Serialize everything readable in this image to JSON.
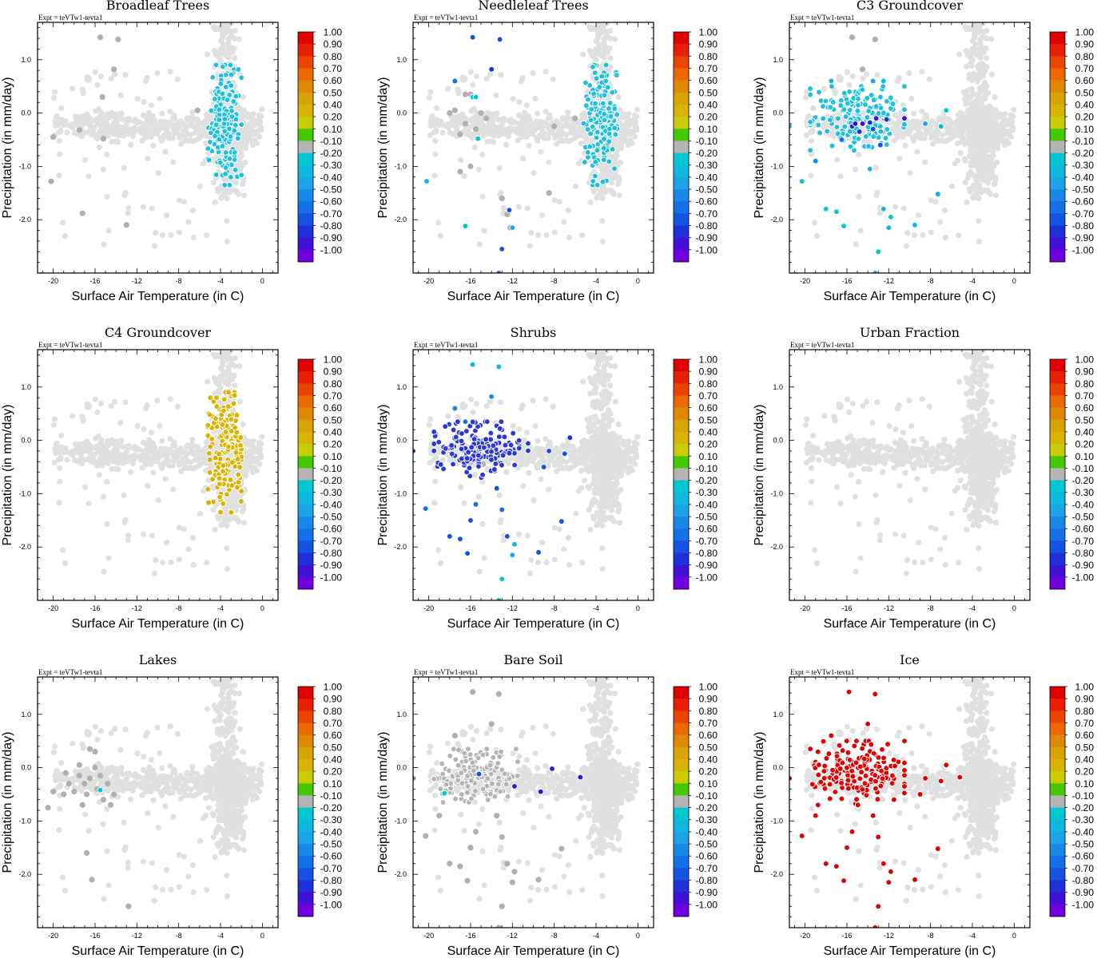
{
  "figure": {
    "expt_label": "Expt = teVTw1-tevta1",
    "xlabel": "Surface Air Temperature (in C)",
    "ylabel": "Precipitation (in mm/day)"
  },
  "chart_data": [
    {
      "type": "scatter",
      "title": "Broadleaf Trees",
      "xlim": [
        -21.5,
        1.5
      ],
      "ylim": [
        -3.0,
        1.7
      ],
      "xticks": [
        "-20",
        "-16",
        "-12",
        "-8",
        "-4",
        "0"
      ],
      "yticks": [
        "1.0",
        "0.0",
        "-1.0",
        "-2.0"
      ],
      "highlight_cluster": {
        "x_range": [
          -5.2,
          -2.0
        ],
        "y_range": [
          -1.35,
          0.9
        ],
        "color": "#1ec0dc",
        "approx_correlation": -0.25
      },
      "gray_points": [
        [
          -15.5,
          1.42
        ],
        [
          -13.8,
          1.38
        ],
        [
          -14.2,
          0.82
        ],
        [
          -15.3,
          0.3
        ],
        [
          -17.5,
          -0.32
        ],
        [
          -15.2,
          -0.48
        ],
        [
          -20.0,
          -0.45
        ],
        [
          -17.2,
          -1.88
        ],
        [
          -13,
          -2.1
        ],
        [
          -20.2,
          -1.28
        ],
        [
          -6.2,
          0.05
        ]
      ]
    },
    {
      "type": "scatter",
      "title": "Needleleaf Trees",
      "xlim": [
        -21.5,
        1.5
      ],
      "ylim": [
        -3.0,
        1.7
      ],
      "xticks": [
        "-20",
        "-16",
        "-12",
        "-8",
        "-4",
        "0"
      ],
      "yticks": [
        "1.0",
        "0.0",
        "-1.0",
        "-2.0"
      ],
      "highlight_cluster": {
        "x_range": [
          -5.2,
          -2.0
        ],
        "y_range": [
          -1.35,
          0.9
        ],
        "color": "#1ec0dc",
        "approx_correlation": -0.25
      },
      "gray_points": [
        [
          -17.5,
          0.05
        ],
        [
          -16.5,
          0.35
        ],
        [
          -16,
          0.35
        ],
        [
          -15,
          0.0
        ],
        [
          -17,
          -0.4
        ],
        [
          -16.5,
          -0.2
        ],
        [
          -18,
          0.0
        ],
        [
          -15.5,
          -0.3
        ],
        [
          -14.5,
          -0.1
        ],
        [
          -17,
          -1.1
        ],
        [
          -16,
          -1.0
        ],
        [
          -13,
          -1.6
        ],
        [
          -12.5,
          -1.9
        ],
        [
          -12.2,
          -2.15
        ],
        [
          -8.5,
          -1.5
        ],
        [
          -6,
          -0.1
        ],
        [
          -8,
          -0.25
        ]
      ],
      "colored_points": [
        [
          -15.8,
          1.42,
          -0.7
        ],
        [
          -13.2,
          1.38,
          -0.75
        ],
        [
          -14,
          0.82,
          -0.8
        ],
        [
          -17.5,
          0.6,
          -0.55
        ],
        [
          -15.8,
          0.3,
          -0.25
        ],
        [
          -15.5,
          0.3,
          -0.25
        ],
        [
          -15.3,
          -0.48,
          -0.25
        ],
        [
          -20.2,
          -1.28,
          -0.3
        ],
        [
          -16.5,
          -2.12,
          -0.2
        ],
        [
          -12.3,
          -1.82,
          -0.7
        ],
        [
          -12,
          -2.15,
          -0.4
        ],
        [
          -13,
          -2.55,
          -0.7
        ],
        [
          -13.3,
          -3.0,
          -0.6
        ]
      ]
    },
    {
      "type": "scatter",
      "title": "C3 Groundcover",
      "xlim": [
        -21.5,
        1.5
      ],
      "ylim": [
        -3.0,
        1.7
      ],
      "xticks": [
        "-20",
        "-16",
        "-12",
        "-8",
        "-4",
        "0"
      ],
      "yticks": [
        "1.0",
        "0.0",
        "-1.0",
        "-2.0"
      ],
      "highlight_cluster": {
        "x_range": [
          -19.5,
          -10.5
        ],
        "y_range": [
          -0.7,
          0.5
        ],
        "color": "#1ec0dc",
        "approx_correlation": -0.25
      },
      "colored_points": [
        [
          -14.5,
          -0.2,
          -0.9
        ],
        [
          -13.8,
          -0.18,
          -0.85
        ],
        [
          -13.2,
          -0.1,
          -0.9
        ],
        [
          -12.2,
          -0.12,
          -0.8
        ],
        [
          -10.5,
          -0.1,
          -0.95
        ],
        [
          -15.5,
          -0.25,
          -0.8
        ],
        [
          -14.8,
          -0.35,
          -0.85
        ],
        [
          -13.5,
          -0.3,
          -0.75
        ],
        [
          -12.8,
          -0.6,
          -0.7
        ],
        [
          -15.2,
          -0.2,
          -0.9
        ],
        [
          -13.5,
          0.6,
          -0.4
        ],
        [
          -17.5,
          0.6,
          -0.3
        ],
        [
          -12.5,
          0.6,
          -0.2
        ],
        [
          -21.5,
          -0.25,
          -0.3
        ],
        [
          -20.3,
          -1.28,
          -0.25
        ],
        [
          -18,
          -1.8,
          -0.25
        ],
        [
          -17,
          -1.85,
          -0.25
        ],
        [
          -16.3,
          -2.12,
          -0.25
        ],
        [
          -12.5,
          -1.8,
          -0.3
        ],
        [
          -12,
          -2.15,
          -0.3
        ],
        [
          -11.8,
          -1.95,
          -0.25
        ],
        [
          -13,
          -2.6,
          -0.2
        ],
        [
          -13.3,
          -3.0,
          -0.3
        ],
        [
          -9.5,
          -2.1,
          -0.3
        ],
        [
          -7.3,
          -1.52,
          -0.4
        ],
        [
          -6.5,
          0.05,
          -0.2
        ],
        [
          -7,
          -0.25,
          -0.3
        ],
        [
          -8.5,
          -0.2,
          -0.4
        ],
        [
          -19,
          -0.9,
          -0.5
        ],
        [
          -16.5,
          -0.5,
          -0.55
        ],
        [
          -13.8,
          -1.05,
          -0.3
        ]
      ],
      "gray_points": [
        [
          -15.5,
          1.42
        ],
        [
          -13.3,
          1.38
        ],
        [
          -14.5,
          0.82
        ],
        [
          -15.3,
          0.3
        ]
      ]
    },
    {
      "type": "scatter",
      "title": "C4 Groundcover",
      "xlim": [
        -21.5,
        1.5
      ],
      "ylim": [
        -3.0,
        1.7
      ],
      "xticks": [
        "-20",
        "-16",
        "-12",
        "-8",
        "-4",
        "0"
      ],
      "yticks": [
        "1.0",
        "0.0",
        "-1.0",
        "-2.0"
      ],
      "highlight_cluster": {
        "x_range": [
          -5.2,
          -2.0
        ],
        "y_range": [
          -1.35,
          0.9
        ],
        "color": "#d8b400",
        "approx_correlation": 0.5
      }
    },
    {
      "type": "scatter",
      "title": "Shrubs",
      "xlim": [
        -21.5,
        1.5
      ],
      "ylim": [
        -3.0,
        1.7
      ],
      "xticks": [
        "-20",
        "-16",
        "-12",
        "-8",
        "-4",
        "0"
      ],
      "yticks": [
        "1.0",
        "0.0",
        "-1.0",
        "-2.0"
      ],
      "highlight_cluster": {
        "x_range": [
          -19.5,
          -10.5
        ],
        "y_range": [
          -0.7,
          0.35
        ],
        "color": "#2a38d8",
        "approx_correlation": -0.7
      },
      "gray_points": [
        [
          -15.5,
          -0.2
        ],
        [
          -15,
          -0.1
        ],
        [
          -14.5,
          -0.3
        ],
        [
          -16,
          -0.4
        ],
        [
          -15.2,
          -0.05
        ],
        [
          -14.8,
          -0.45
        ],
        [
          -13.8,
          -0.25
        ],
        [
          -14.2,
          -0.05
        ],
        [
          -15.8,
          -0.25
        ]
      ],
      "colored_points": [
        [
          -15.8,
          1.42,
          -0.3
        ],
        [
          -13.3,
          1.38,
          -0.3
        ],
        [
          -14,
          0.82,
          -0.5
        ],
        [
          -17.5,
          0.6,
          -0.5
        ],
        [
          -16.5,
          0.35,
          -0.6
        ],
        [
          -21.5,
          -0.2,
          -0.7
        ],
        [
          -20.3,
          -1.28,
          -0.6
        ],
        [
          -18,
          -1.8,
          -0.7
        ],
        [
          -17,
          -1.85,
          -0.75
        ],
        [
          -16.3,
          -2.12,
          -0.65
        ],
        [
          -12.5,
          -1.8,
          -0.65
        ],
        [
          -12,
          -2.15,
          -0.45
        ],
        [
          -11.8,
          -1.95,
          -0.3
        ],
        [
          -13,
          -2.6,
          -0.25
        ],
        [
          -13.3,
          -3.0,
          -0.3
        ],
        [
          -9.5,
          -2.1,
          -0.7
        ],
        [
          -7.3,
          -1.52,
          -0.75
        ],
        [
          -6.5,
          0.05,
          -0.8
        ],
        [
          -7,
          -0.25,
          -0.7
        ],
        [
          -8.5,
          -0.2,
          -0.7
        ],
        [
          -9,
          -0.5,
          -0.75
        ],
        [
          -13.5,
          -0.9,
          -0.65
        ],
        [
          -13,
          -1.3,
          -0.6
        ],
        [
          -16,
          -1.5,
          -0.7
        ],
        [
          -15.5,
          -1.2,
          -0.6
        ]
      ]
    },
    {
      "type": "scatter",
      "title": "Urban Fraction",
      "xlim": [
        -21.5,
        1.5
      ],
      "ylim": [
        -3.0,
        1.7
      ],
      "xticks": [
        "-20",
        "-16",
        "-12",
        "-8",
        "-4",
        "0"
      ],
      "yticks": [
        "1.0",
        "0.0",
        "-1.0",
        "-2.0"
      ]
    },
    {
      "type": "scatter",
      "title": "Lakes",
      "xlim": [
        -21.5,
        1.5
      ],
      "ylim": [
        -3.0,
        1.7
      ],
      "xticks": [
        "-20",
        "-16",
        "-12",
        "-8",
        "-4",
        "0"
      ],
      "yticks": [
        "1.0",
        "0.0",
        "-1.0",
        "-2.0"
      ],
      "gray_points": [
        [
          -16.5,
          0.35
        ],
        [
          -16,
          0.3
        ],
        [
          -17.5,
          0.05
        ],
        [
          -18.5,
          -0.3
        ],
        [
          -19,
          -0.5
        ],
        [
          -17,
          -0.3
        ],
        [
          -16.5,
          -0.2
        ],
        [
          -15.5,
          -0.15
        ],
        [
          -14.8,
          -0.3
        ],
        [
          -14.2,
          -0.5
        ],
        [
          -14.5,
          -0.7
        ],
        [
          -17.2,
          -0.7
        ],
        [
          -16.8,
          -0.5
        ],
        [
          -18,
          -0.45
        ],
        [
          -20,
          -0.45
        ],
        [
          -20.5,
          -0.75
        ],
        [
          -15.8,
          -0.4
        ],
        [
          -15.2,
          -0.6
        ],
        [
          -17.5,
          -0.15
        ],
        [
          -16,
          0.0
        ],
        [
          -16.8,
          -1.6
        ],
        [
          -16.3,
          -2.1
        ],
        [
          -12.8,
          -2.6
        ],
        [
          -18.8,
          -0.1
        ]
      ],
      "colored_points": [
        [
          -15.5,
          -0.42,
          -0.2
        ]
      ]
    },
    {
      "type": "scatter",
      "title": "Bare Soil",
      "xlim": [
        -21.5,
        1.5
      ],
      "ylim": [
        -3.0,
        1.7
      ],
      "xticks": [
        "-20",
        "-16",
        "-12",
        "-8",
        "-4",
        "0"
      ],
      "yticks": [
        "1.0",
        "0.0",
        "-1.0",
        "-2.0"
      ],
      "highlight_cluster": {
        "x_range": [
          -19.5,
          -11.5
        ],
        "y_range": [
          -0.65,
          0.35
        ],
        "color": "#b4b4b4",
        "approx_correlation": -0.05
      },
      "gray_points": [
        [
          -15.8,
          1.42
        ],
        [
          -13.3,
          1.38
        ],
        [
          -14,
          0.82
        ],
        [
          -17.5,
          0.6
        ],
        [
          -21.5,
          -0.2
        ],
        [
          -20.3,
          -1.28
        ],
        [
          -18,
          -1.8
        ],
        [
          -17,
          -1.85
        ],
        [
          -16.3,
          -2.12
        ],
        [
          -12.5,
          -1.8
        ],
        [
          -12,
          -2.15
        ],
        [
          -11.8,
          -1.95
        ],
        [
          -13,
          -2.6
        ],
        [
          -13.3,
          -3.0
        ],
        [
          -9.5,
          -2.1
        ],
        [
          -7.3,
          -1.52
        ],
        [
          -19,
          -0.9
        ],
        [
          -13.5,
          -0.9
        ],
        [
          -13,
          -1.3
        ],
        [
          -16,
          -1.5
        ],
        [
          -15.5,
          -1.2
        ]
      ],
      "colored_points": [
        [
          -8.2,
          -0.02,
          -0.9
        ],
        [
          -5.5,
          -0.18,
          -0.9
        ],
        [
          -9.3,
          -0.45,
          -0.9
        ],
        [
          -11.8,
          -0.35,
          -0.9
        ],
        [
          -18.5,
          -0.48,
          -0.2
        ],
        [
          -15.2,
          -0.12,
          -0.7
        ]
      ]
    },
    {
      "type": "scatter",
      "title": "Ice",
      "xlim": [
        -21.5,
        1.5
      ],
      "ylim": [
        -3.0,
        1.7
      ],
      "xticks": [
        "-20",
        "-16",
        "-12",
        "-8",
        "-4",
        "0"
      ],
      "yticks": [
        "1.0",
        "0.0",
        "-1.0",
        "-2.0"
      ],
      "highlight_cluster": {
        "x_range": [
          -19.5,
          -10.5
        ],
        "y_range": [
          -0.7,
          0.5
        ],
        "color": "#e00000",
        "approx_correlation": 1.0
      },
      "colored_points": [
        [
          -15.8,
          1.42,
          1
        ],
        [
          -13.3,
          1.38,
          1
        ],
        [
          -14,
          0.82,
          1
        ],
        [
          -17.5,
          0.6,
          1
        ],
        [
          -21.5,
          -0.2,
          1
        ],
        [
          -20.3,
          -1.28,
          1
        ],
        [
          -18,
          -1.8,
          1
        ],
        [
          -17,
          -1.85,
          1
        ],
        [
          -16.3,
          -2.12,
          1
        ],
        [
          -12.5,
          -1.8,
          1
        ],
        [
          -12,
          -2.15,
          1
        ],
        [
          -11.8,
          -1.95,
          1
        ],
        [
          -13,
          -2.6,
          1
        ],
        [
          -13.3,
          -3.0,
          1
        ],
        [
          -9.5,
          -2.1,
          1
        ],
        [
          -7.3,
          -1.52,
          1
        ],
        [
          -6.5,
          0.05,
          1
        ],
        [
          -7,
          -0.25,
          1
        ],
        [
          -8.5,
          -0.2,
          1
        ],
        [
          -5.2,
          -0.18,
          1
        ],
        [
          -9,
          -0.5,
          1
        ],
        [
          -13.5,
          -0.9,
          1
        ],
        [
          -13,
          -1.3,
          1
        ],
        [
          -16,
          -1.5,
          1
        ],
        [
          -15.5,
          -1.2,
          1
        ],
        [
          -19,
          -0.9,
          1
        ],
        [
          -11.5,
          -0.6,
          1
        ],
        [
          -10.5,
          -0.35,
          1
        ]
      ]
    }
  ],
  "colorbar": {
    "labels": [
      "1.00",
      "0.90",
      "0.80",
      "0.70",
      "0.60",
      "0.50",
      "0.40",
      "0.20",
      "0.10",
      "-0.10",
      "-0.20",
      "-0.30",
      "-0.40",
      "-0.50",
      "-0.60",
      "-0.70",
      "-0.80",
      "-0.90",
      "-1.00"
    ],
    "colors": [
      "#e00000",
      "#e62000",
      "#ea4400",
      "#ec6800",
      "#e08800",
      "#d8a400",
      "#d8b400",
      "#c8cc00",
      "#44c800",
      "#b4b4b4",
      "#00c8d0",
      "#10b8e0",
      "#1ca4e8",
      "#1888e8",
      "#1470e8",
      "#1452e0",
      "#2030d8",
      "#4010d8",
      "#7000e0"
    ]
  },
  "background_points_color": "#e0e0e0"
}
